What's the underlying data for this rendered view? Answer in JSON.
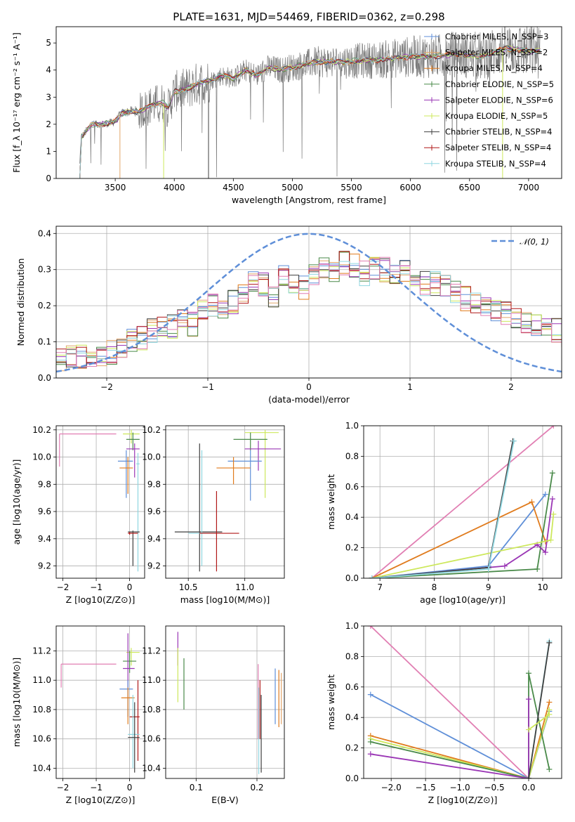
{
  "figure_title": "PLATE=1631, MJD=54469, FIBERID=0362, z=0.298",
  "colors": {
    "cM": "#5f8fd8",
    "sM": "#e2a56a",
    "kM": "#e07b1d",
    "cE": "#4a8a4a",
    "sE": "#9a36b5",
    "kE": "#cde85c",
    "cS": "#3f3f3f",
    "sS": "#b01818",
    "kS": "#8fd6e0",
    "pink": "#e17fb3",
    "gray": "#7a7a7a"
  },
  "chart_data": [
    {
      "id": "spectrum",
      "type": "line",
      "xlabel": "wavelength [Angstrom, rest frame]",
      "ylabel": "Flux [f_λ 10⁻¹⁷ erg cm⁻² s⁻¹ A⁻¹]",
      "xlim": [
        3000,
        7280
      ],
      "ylim": [
        0,
        5.6
      ],
      "xticks": [
        3500,
        4000,
        4500,
        5000,
        5500,
        6000,
        6500,
        7000
      ],
      "yticks": [
        0,
        1,
        2,
        3,
        4,
        5
      ],
      "grid": false,
      "legend_position": "upper right",
      "data_continuum": {
        "x": [
          3195,
          3210,
          3300,
          3400,
          3500,
          3550,
          3650,
          3700,
          3800,
          3900,
          3950,
          4000,
          4100,
          4200,
          4300,
          4400,
          4500,
          4600,
          4700,
          4800,
          4900,
          5000,
          5200,
          5400,
          5600,
          5800,
          6000,
          6200,
          6400,
          6600,
          6800,
          7000,
          7100
        ],
        "y": [
          0,
          1.5,
          2.0,
          2.0,
          2.1,
          2.4,
          2.5,
          2.45,
          2.7,
          2.8,
          2.6,
          3.2,
          3.3,
          3.5,
          3.6,
          3.8,
          3.7,
          4.0,
          3.8,
          4.1,
          4.0,
          4.1,
          4.3,
          4.3,
          4.35,
          4.4,
          4.5,
          4.5,
          4.6,
          4.5,
          4.8,
          4.7,
          4.7
        ]
      },
      "series": [
        {
          "name": "Chabrier MILES, N_SSP=3",
          "color": "cM"
        },
        {
          "name": "Salpeter MILES, N_SSP=2",
          "color": "sM"
        },
        {
          "name": "Kroupa MILES, N_SSP=4",
          "color": "kM"
        },
        {
          "name": "Chabrier ELODIE, N_SSP=5",
          "color": "cE"
        },
        {
          "name": "Salpeter ELODIE, N_SSP=6",
          "color": "sE"
        },
        {
          "name": "Kroupa ELODIE, N_SSP=5",
          "color": "kE"
        },
        {
          "name": "Chabrier STELIB, N_SSP=4",
          "color": "cS"
        },
        {
          "name": "Salpeter STELIB, N_SSP=4",
          "color": "sS"
        },
        {
          "name": "Kroupa STELIB, N_SSP=4",
          "color": "kS"
        }
      ]
    },
    {
      "id": "residuals",
      "type": "line",
      "xlabel": "(data-model)/error",
      "ylabel": "Normed distribution",
      "xlim": [
        -2.5,
        2.5
      ],
      "ylim": [
        0,
        0.42
      ],
      "xticks": [
        -2,
        -1,
        0,
        1,
        2
      ],
      "yticks": [
        0.0,
        0.1,
        0.2,
        0.3,
        0.4
      ],
      "grid": true,
      "legend_position": "upper right",
      "gaussian": {
        "name": "𝒩(0, 1)",
        "color": "cM",
        "mu": 0,
        "sigma": 1
      },
      "bins_start": -2.5,
      "bin_width": 0.1,
      "hist_mean": [
        0.05,
        0.055,
        0.06,
        0.06,
        0.065,
        0.07,
        0.08,
        0.1,
        0.11,
        0.13,
        0.15,
        0.14,
        0.17,
        0.15,
        0.19,
        0.2,
        0.2,
        0.21,
        0.23,
        0.27,
        0.26,
        0.22,
        0.28,
        0.27,
        0.25,
        0.29,
        0.31,
        0.3,
        0.32,
        0.31,
        0.29,
        0.3,
        0.3,
        0.28,
        0.3,
        0.27,
        0.26,
        0.26,
        0.25,
        0.24,
        0.22,
        0.21,
        0.2,
        0.19,
        0.18,
        0.17,
        0.16,
        0.15,
        0.14,
        0.13,
        0.12,
        0.11,
        0.1,
        0.1,
        0.09,
        0.08,
        0.08,
        0.08,
        0.08,
        0.09
      ]
    },
    {
      "id": "age_vs_Z",
      "type": "scatter",
      "xlabel": "Z [log10(Z/Z⊙)]",
      "ylabel": "age  [log10(age/yr)]",
      "xlim": [
        -2.2,
        0.45
      ],
      "ylim": [
        9.11,
        10.23
      ],
      "xticks": [
        -2,
        -1,
        0
      ],
      "yticks": [
        9.2,
        9.4,
        9.6,
        9.8,
        10.0,
        10.2
      ],
      "grid": true,
      "points": [
        {
          "c": "pink",
          "x": -2.1,
          "y": 10.17,
          "xl": -2.1,
          "xh": -0.4,
          "yl": 9.93,
          "yh": 10.17
        },
        {
          "c": "kE",
          "x": 0.05,
          "y": 10.17,
          "xl": -0.2,
          "xh": 0.3,
          "yl": 10.1,
          "yh": 10.2
        },
        {
          "c": "cE",
          "x": 0.1,
          "y": 10.13,
          "xl": -0.1,
          "xh": 0.3,
          "yl": 10.05,
          "yh": 10.18
        },
        {
          "c": "sE",
          "x": 0.15,
          "y": 10.06,
          "xl": -0.1,
          "xh": 0.3,
          "yl": 9.85,
          "yh": 10.1
        },
        {
          "c": "cM",
          "x": -0.1,
          "y": 9.97,
          "xl": -0.35,
          "xh": 0.1,
          "yl": 9.7,
          "yh": 10.05
        },
        {
          "c": "kM",
          "x": -0.05,
          "y": 9.92,
          "xl": -0.3,
          "xh": 0.1,
          "yl": 9.73,
          "yh": 10.0
        },
        {
          "c": "kS",
          "x": 0.25,
          "y": 9.95,
          "xl": 0.2,
          "xh": 0.3,
          "yl": 9.16,
          "yh": 10.03
        },
        {
          "c": "cS",
          "x": 0.1,
          "y": 9.45,
          "xl": -0.05,
          "xh": 0.3,
          "yl": 9.2,
          "yh": 9.46
        },
        {
          "c": "sS",
          "x": 0.0,
          "y": 9.44,
          "xl": -0.05,
          "xh": 0.25,
          "yl": 9.43,
          "yh": 9.45
        }
      ]
    },
    {
      "id": "age_vs_mass",
      "type": "scatter",
      "xlabel": "mass [log10(M/M⊙)]",
      "ylabel": "",
      "xlim": [
        10.3,
        11.35
      ],
      "ylim": [
        9.11,
        10.23
      ],
      "xticks": [
        10.5,
        11.0
      ],
      "yticks": [
        9.2,
        9.4,
        9.6,
        9.8,
        10.0,
        10.2
      ],
      "grid": true,
      "points": [
        {
          "c": "kE",
          "x": 11.18,
          "y": 10.18,
          "xl": 11.0,
          "xh": 11.3,
          "yl": 9.7,
          "yh": 10.2
        },
        {
          "c": "cE",
          "x": 11.05,
          "y": 10.13,
          "xl": 10.9,
          "xh": 11.2,
          "yl": 10.05,
          "yh": 10.18
        },
        {
          "c": "sE",
          "x": 11.12,
          "y": 10.06,
          "xl": 11.0,
          "xh": 11.32,
          "yl": 9.9,
          "yh": 10.12
        },
        {
          "c": "cM",
          "x": 11.05,
          "y": 9.97,
          "xl": 10.85,
          "xh": 11.15,
          "yl": 9.68,
          "yh": 10.05
        },
        {
          "c": "kM",
          "x": 10.9,
          "y": 9.92,
          "xl": 10.75,
          "xh": 11.05,
          "yl": 9.8,
          "yh": 10.0
        },
        {
          "c": "cS",
          "x": 10.6,
          "y": 9.45,
          "xl": 10.38,
          "xh": 10.8,
          "yl": 9.16,
          "yh": 10.1
        },
        {
          "c": "kS",
          "x": 10.62,
          "y": 9.44,
          "xl": 10.5,
          "xh": 10.75,
          "yl": 9.2,
          "yh": 10.05
        },
        {
          "c": "sS",
          "x": 10.75,
          "y": 9.44,
          "xl": 10.6,
          "xh": 10.95,
          "yl": 9.16,
          "yh": 9.75
        }
      ]
    },
    {
      "id": "weight_vs_age",
      "type": "line",
      "xlabel": "age  [log10(age/yr)]",
      "ylabel": "mass weight",
      "xlim": [
        6.7,
        10.35
      ],
      "ylim": [
        0,
        1.0
      ],
      "xticks": [
        7,
        8,
        9,
        10
      ],
      "yticks": [
        0.0,
        0.2,
        0.4,
        0.6,
        0.8,
        1.0
      ],
      "grid": true,
      "series": [
        {
          "c": "pink",
          "x": [
            6.85,
            10.2
          ],
          "y": [
            0.0,
            1.0
          ]
        },
        {
          "c": "cM",
          "x": [
            6.85,
            9.0,
            10.05
          ],
          "y": [
            0.0,
            0.08,
            0.55
          ]
        },
        {
          "c": "kM",
          "x": [
            6.85,
            9.8,
            10.05
          ],
          "y": [
            0.0,
            0.5,
            0.24
          ]
        },
        {
          "c": "cE",
          "x": [
            6.85,
            9.9,
            10.18
          ],
          "y": [
            0.0,
            0.06,
            0.69
          ]
        },
        {
          "c": "sE",
          "x": [
            6.85,
            9.3,
            9.9,
            10.05,
            10.18
          ],
          "y": [
            0.0,
            0.08,
            0.22,
            0.17,
            0.52
          ]
        },
        {
          "c": "kE",
          "x": [
            6.85,
            10.15,
            10.2
          ],
          "y": [
            0.0,
            0.25,
            0.42
          ]
        },
        {
          "c": "cS",
          "x": [
            6.85,
            9.0,
            9.45
          ],
          "y": [
            0.0,
            0.07,
            0.9
          ]
        },
        {
          "c": "kS",
          "x": [
            6.85,
            9.0,
            9.47
          ],
          "y": [
            0.0,
            0.06,
            0.9
          ]
        }
      ]
    },
    {
      "id": "mass_vs_Z",
      "type": "scatter",
      "xlabel": "Z [log10(Z/Z⊙)]",
      "ylabel": "mass [log10(M/M⊙)]",
      "xlim": [
        -2.2,
        0.45
      ],
      "ylim": [
        10.33,
        11.37
      ],
      "xticks": [
        -2,
        -1,
        0
      ],
      "yticks": [
        10.4,
        10.6,
        10.8,
        11.0,
        11.2
      ],
      "grid": true,
      "points": [
        {
          "c": "pink",
          "x": -2.05,
          "y": 11.11,
          "xl": -2.05,
          "xh": -0.4,
          "yl": 10.95,
          "yh": 11.11
        },
        {
          "c": "kE",
          "x": 0.05,
          "y": 11.19,
          "xl": -0.1,
          "xh": 0.3,
          "yl": 11.1,
          "yh": 11.22
        },
        {
          "c": "cE",
          "x": 0.0,
          "y": 11.13,
          "xl": -0.2,
          "xh": 0.2,
          "yl": 11.05,
          "yh": 11.2
        },
        {
          "c": "sE",
          "x": -0.05,
          "y": 11.08,
          "xl": -0.2,
          "xh": 0.15,
          "yl": 10.95,
          "yh": 11.32
        },
        {
          "c": "cM",
          "x": -0.05,
          "y": 10.94,
          "xl": -0.3,
          "xh": 0.1,
          "yl": 10.75,
          "yh": 11.0
        },
        {
          "c": "kM",
          "x": -0.05,
          "y": 10.88,
          "xl": -0.25,
          "xh": 0.15,
          "yl": 10.7,
          "yh": 10.95
        },
        {
          "c": "sS",
          "x": 0.25,
          "y": 10.75,
          "xl": 0.0,
          "xh": 0.3,
          "yl": 10.45,
          "yh": 11.0
        },
        {
          "c": "kS",
          "x": 0.1,
          "y": 10.63,
          "xl": -0.05,
          "xh": 0.3,
          "yl": 10.4,
          "yh": 10.9
        },
        {
          "c": "cS",
          "x": 0.15,
          "y": 10.61,
          "xl": -0.05,
          "xh": 0.3,
          "yl": 10.37,
          "yh": 10.85
        }
      ]
    },
    {
      "id": "mass_vs_ebv",
      "type": "scatter",
      "xlabel": "E(B-V)",
      "ylabel": "",
      "xlim": [
        0.05,
        0.245
      ],
      "ylim": [
        10.33,
        11.37
      ],
      "xticks": [
        0.1,
        0.2
      ],
      "yticks": [
        10.4,
        10.6,
        10.8,
        11.0,
        11.2
      ],
      "grid": true,
      "points": [
        {
          "c": "sE",
          "x": 0.07,
          "yl": 11.1,
          "yh": 11.33
        },
        {
          "c": "kE",
          "x": 0.07,
          "yl": 10.85,
          "yh": 11.22
        },
        {
          "c": "cE",
          "x": 0.08,
          "yl": 10.8,
          "yh": 11.15
        },
        {
          "c": "pink",
          "x": 0.202,
          "yl": 10.6,
          "yh": 11.11
        },
        {
          "c": "sS",
          "x": 0.205,
          "yl": 10.6,
          "yh": 11.0
        },
        {
          "c": "kS",
          "x": 0.203,
          "yl": 10.36,
          "yh": 10.95
        },
        {
          "c": "cS",
          "x": 0.207,
          "yl": 10.37,
          "yh": 10.9
        },
        {
          "c": "cM",
          "x": 0.23,
          "yl": 10.7,
          "yh": 11.08
        },
        {
          "c": "kM",
          "x": 0.236,
          "yl": 10.68,
          "yh": 11.07
        },
        {
          "c": "sM",
          "x": 0.24,
          "yl": 10.7,
          "yh": 11.05
        }
      ]
    },
    {
      "id": "weight_vs_Z",
      "type": "line",
      "xlabel": "Z [log10(Z/Z⊙)]",
      "ylabel": "mass weight",
      "xlim": [
        -2.4,
        0.48
      ],
      "ylim": [
        0,
        1.0
      ],
      "xticks": [
        -2.0,
        -1.5,
        -1.0,
        -0.5,
        0.0
      ],
      "yticks": [
        0.0,
        0.2,
        0.4,
        0.6,
        0.8,
        1.0
      ],
      "grid": true,
      "series": [
        {
          "c": "pink",
          "x": [
            -2.3,
            0.0
          ],
          "y": [
            1.0,
            0.0
          ]
        },
        {
          "c": "cM",
          "x": [
            -2.3,
            0.0,
            0.3
          ],
          "y": [
            0.55,
            0.0,
            0.44
          ]
        },
        {
          "c": "kM",
          "x": [
            -2.3,
            0.0,
            0.3
          ],
          "y": [
            0.28,
            0.0,
            0.5
          ]
        },
        {
          "c": "kE",
          "x": [
            -2.3,
            0.0,
            0.3
          ],
          "y": [
            0.26,
            0.0,
            0.45
          ]
        },
        {
          "c": "cE",
          "x": [
            -2.3,
            0.0,
            0.0,
            0.3
          ],
          "y": [
            0.24,
            0.0,
            0.69,
            0.06
          ]
        },
        {
          "c": "sE",
          "x": [
            -2.3,
            0.0,
            0.0
          ],
          "y": [
            0.16,
            0.0,
            0.52
          ]
        },
        {
          "c": "kS",
          "x": [
            0.0,
            0.3
          ],
          "y": [
            0.0,
            0.9
          ]
        },
        {
          "c": "cS",
          "x": [
            0.0,
            0.3
          ],
          "y": [
            0.0,
            0.89
          ]
        },
        {
          "c": "kE",
          "x": [
            0.0,
            0.3
          ],
          "y": [
            0.32,
            0.42
          ]
        }
      ]
    }
  ]
}
